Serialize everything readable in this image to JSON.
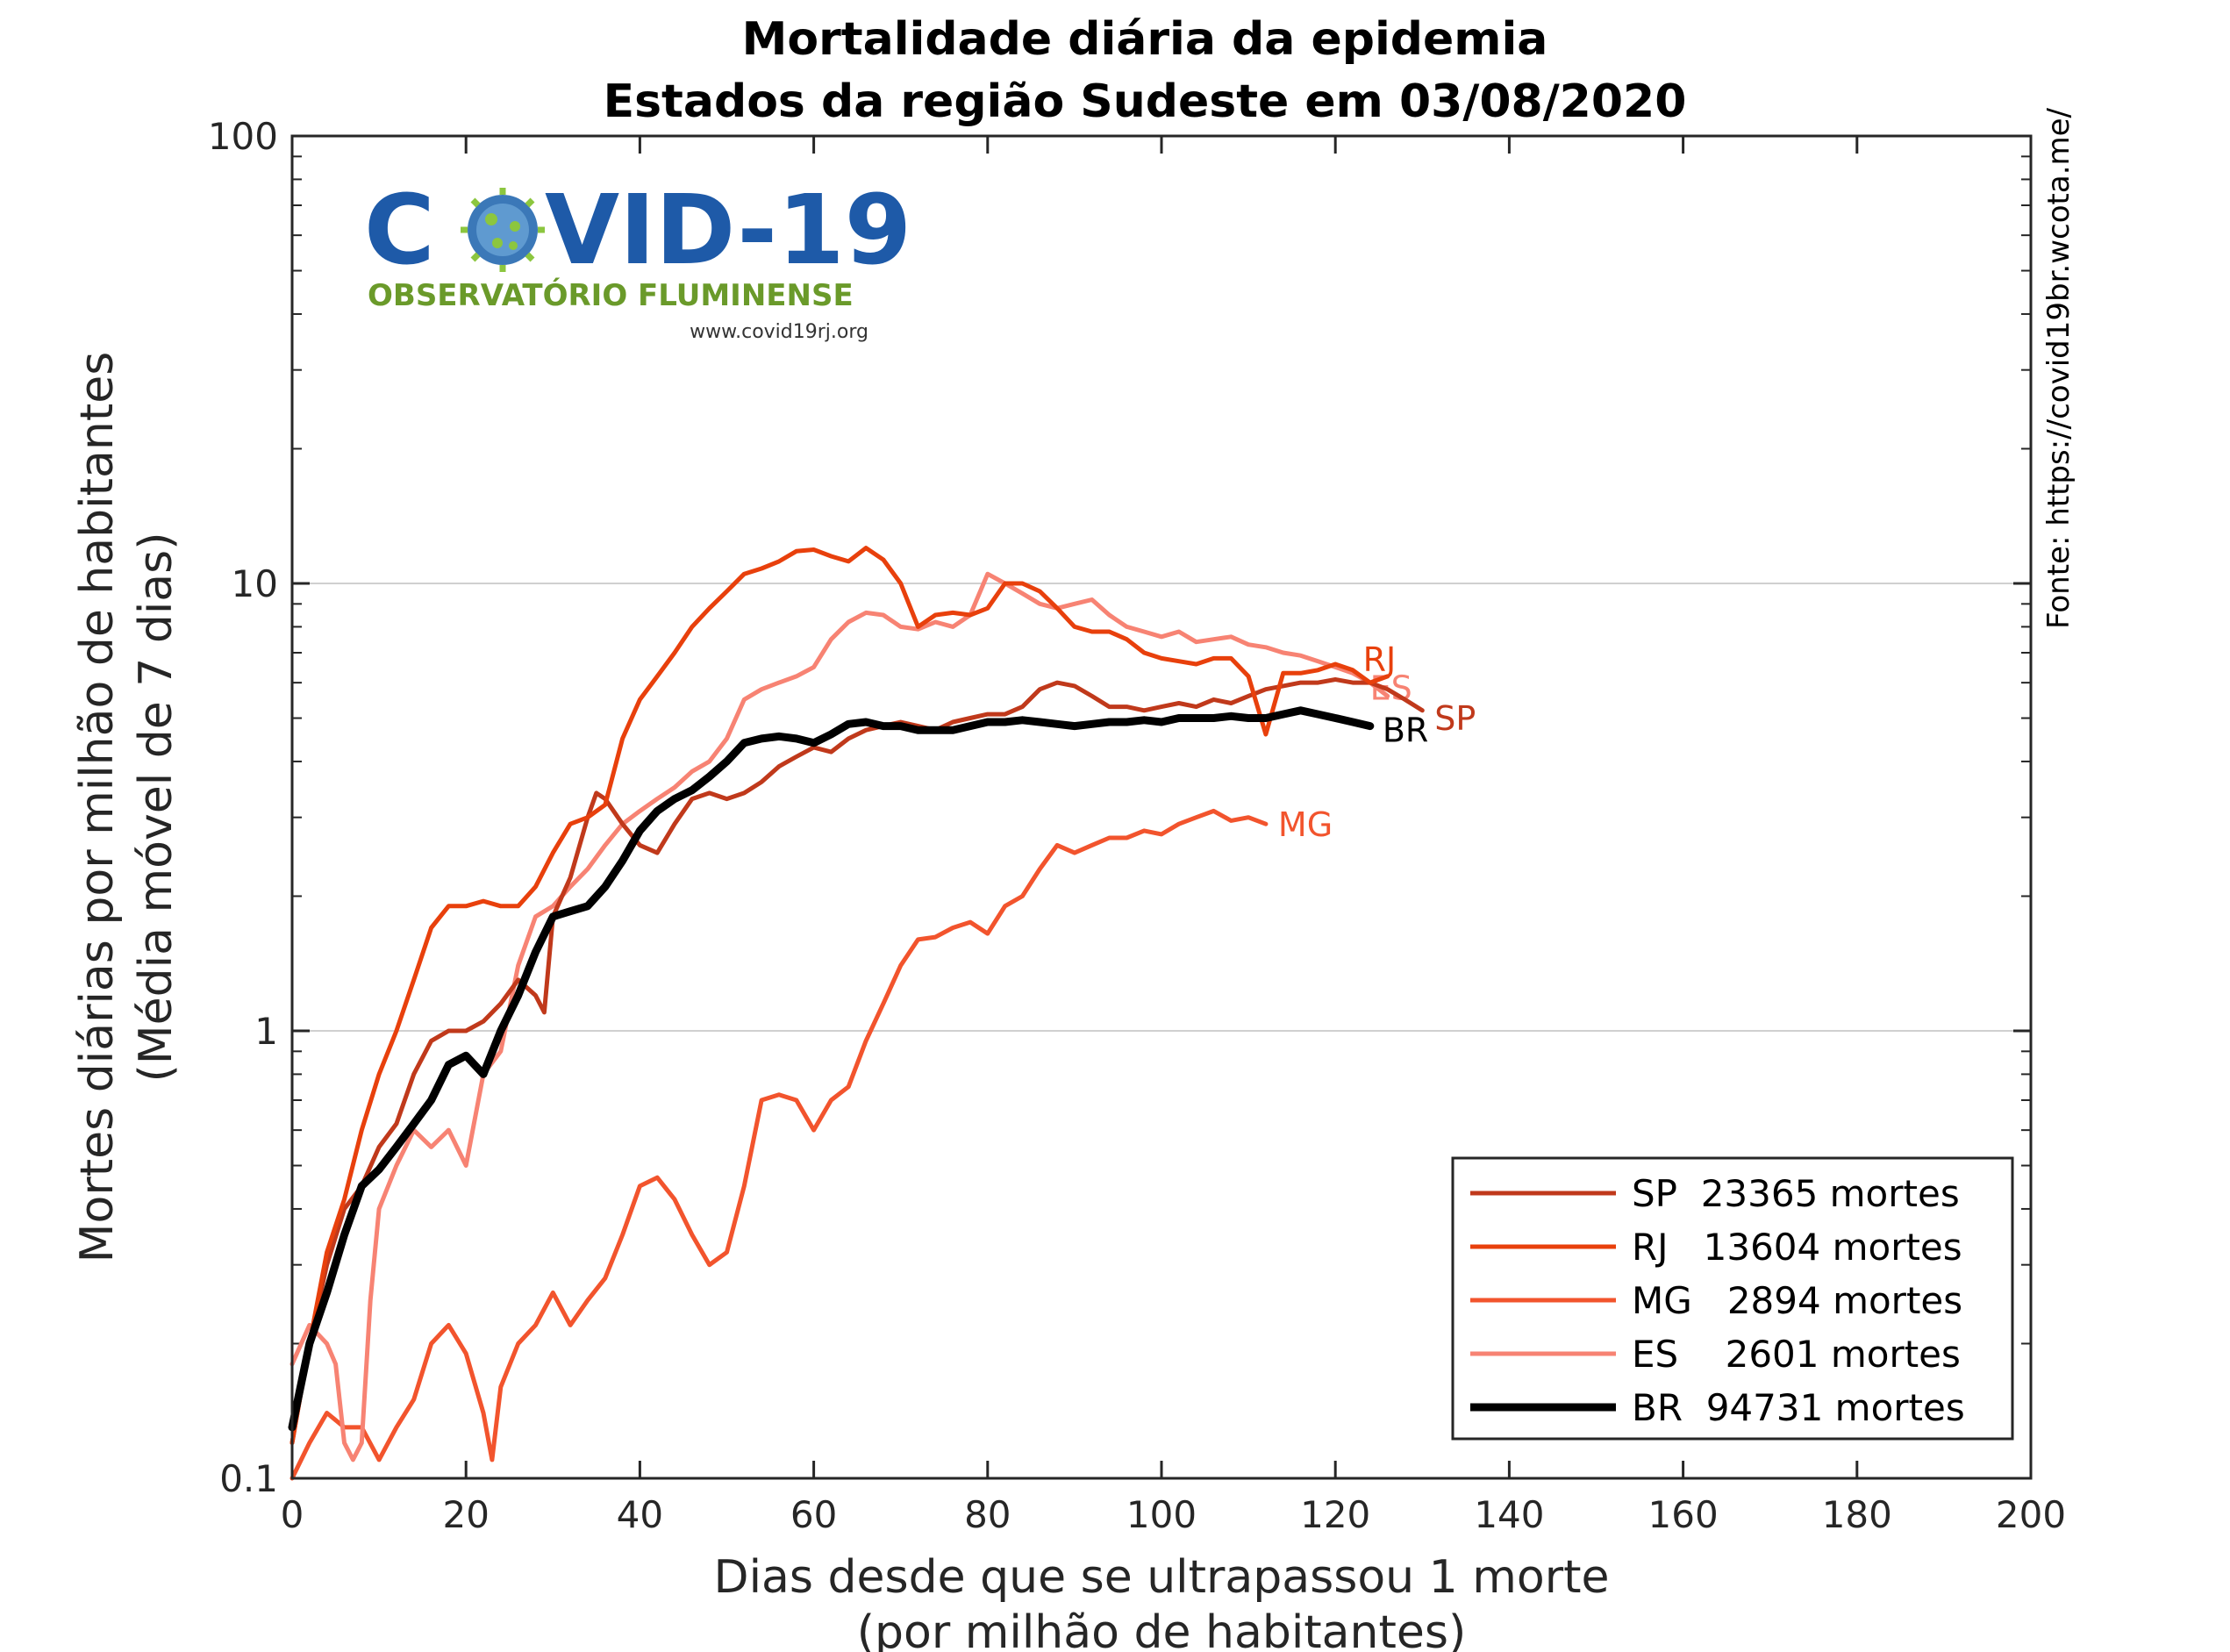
{
  "title_line1": "Mortalidade diária da epidemia",
  "title_line2": "Estados da região Sudeste em 03/08/2020",
  "source_text": "Fonte: https://covid19br.wcota.me/",
  "logo": {
    "text_left": "C",
    "text_right": "VID-19",
    "subtitle": "OBSERVATÓRIO FLUMINENSE",
    "url": "www.covid19rj.org"
  },
  "chart_data": {
    "type": "line",
    "xlabel_line1": "Dias desde que se ultrapassou 1 morte",
    "xlabel_line2": "(por milhão de habitantes)",
    "ylabel_line1": "Mortes diárias por milhão de habitantes",
    "ylabel_line2": "(Média móvel de 7 dias)",
    "xlim": [
      0,
      200
    ],
    "ylim": [
      0.1,
      100
    ],
    "yscale": "log",
    "x_ticks": [
      0,
      20,
      40,
      60,
      80,
      100,
      120,
      140,
      160,
      180,
      200
    ],
    "y_ticks": [
      0.1,
      1,
      10,
      100
    ],
    "y_tick_labels": [
      "0.1",
      "1",
      "10",
      "100"
    ],
    "grid": "horizontal at decades",
    "legend_position": "bottom-right",
    "series": [
      {
        "name": "SP",
        "deaths": "23365",
        "legend_label": "SP  23365 mortes",
        "color": "#c0391b",
        "end_label": "SP",
        "x": [
          0,
          2,
          4,
          6,
          8,
          10,
          12,
          14,
          16,
          18,
          20,
          22,
          24,
          26,
          28,
          29,
          30,
          32,
          34,
          35,
          36,
          38,
          40,
          42,
          44,
          46,
          48,
          50,
          52,
          54,
          56,
          58,
          60,
          62,
          64,
          66,
          68,
          70,
          72,
          74,
          76,
          78,
          80,
          82,
          84,
          86,
          88,
          90,
          92,
          94,
          96,
          98,
          100,
          102,
          104,
          106,
          108,
          110,
          112,
          114,
          116,
          118,
          120,
          122,
          124,
          126,
          128,
          130
        ],
        "y": [
          0.12,
          0.2,
          0.3,
          0.4,
          0.45,
          0.55,
          0.62,
          0.8,
          0.95,
          1.0,
          1.0,
          1.05,
          1.15,
          1.3,
          1.2,
          1.1,
          1.8,
          2.2,
          3.0,
          3.4,
          3.3,
          2.9,
          2.6,
          2.5,
          2.9,
          3.3,
          3.4,
          3.3,
          3.4,
          3.6,
          3.9,
          4.1,
          4.3,
          4.2,
          4.5,
          4.7,
          4.8,
          4.9,
          4.8,
          4.7,
          4.9,
          5.0,
          5.1,
          5.1,
          5.3,
          5.8,
          6.0,
          5.9,
          5.6,
          5.3,
          5.3,
          5.2,
          5.3,
          5.4,
          5.3,
          5.5,
          5.4,
          5.6,
          5.8,
          5.9,
          6.0,
          6.0,
          6.1,
          6.0,
          6.0,
          5.8,
          5.5,
          5.2
        ]
      },
      {
        "name": "RJ",
        "deaths": "13604",
        "legend_label": "RJ   13604 mortes",
        "color": "#e8400c",
        "end_label": "RJ",
        "x": [
          0,
          2,
          4,
          6,
          8,
          10,
          12,
          14,
          16,
          18,
          20,
          22,
          24,
          26,
          28,
          30,
          32,
          34,
          36,
          38,
          40,
          42,
          44,
          46,
          48,
          50,
          52,
          54,
          56,
          58,
          60,
          62,
          64,
          66,
          68,
          70,
          72,
          74,
          76,
          78,
          80,
          82,
          84,
          86,
          88,
          90,
          92,
          94,
          96,
          98,
          100,
          102,
          104,
          106,
          108,
          110,
          112,
          114,
          116,
          118,
          120,
          122,
          124,
          126
        ],
        "y": [
          0.12,
          0.2,
          0.32,
          0.42,
          0.6,
          0.8,
          1.0,
          1.3,
          1.7,
          1.9,
          1.9,
          1.95,
          1.9,
          1.9,
          2.1,
          2.5,
          2.9,
          3.0,
          3.2,
          4.5,
          5.5,
          6.2,
          7.0,
          8.0,
          8.8,
          9.6,
          10.5,
          10.8,
          11.2,
          11.8,
          11.9,
          11.5,
          11.2,
          12.0,
          11.3,
          10.0,
          8.0,
          8.5,
          8.6,
          8.5,
          8.8,
          10.0,
          10.0,
          9.6,
          8.8,
          8.0,
          7.8,
          7.8,
          7.5,
          7.0,
          6.8,
          6.7,
          6.6,
          6.8,
          6.8,
          6.2,
          4.6,
          6.3,
          6.3,
          6.4,
          6.6,
          6.4,
          6.0,
          6.2
        ]
      },
      {
        "name": "MG",
        "deaths": "2894",
        "legend_label": "MG   2894 mortes",
        "color": "#f2542d",
        "end_label": "MG",
        "x": [
          0,
          2,
          4,
          6,
          8,
          10,
          12,
          14,
          16,
          18,
          20,
          22,
          23,
          24,
          26,
          28,
          30,
          32,
          34,
          36,
          38,
          40,
          42,
          44,
          46,
          48,
          50,
          52,
          54,
          56,
          58,
          60,
          62,
          64,
          66,
          68,
          70,
          72,
          74,
          76,
          78,
          80,
          82,
          84,
          86,
          88,
          90,
          92,
          94,
          96,
          98,
          100,
          102,
          104,
          106,
          108,
          110,
          112
        ],
        "y": [
          0.1,
          0.12,
          0.14,
          0.13,
          0.13,
          0.11,
          0.13,
          0.15,
          0.2,
          0.22,
          0.19,
          0.14,
          0.11,
          0.16,
          0.2,
          0.22,
          0.26,
          0.22,
          0.25,
          0.28,
          0.35,
          0.45,
          0.47,
          0.42,
          0.35,
          0.3,
          0.32,
          0.45,
          0.7,
          0.72,
          0.7,
          0.6,
          0.7,
          0.75,
          0.95,
          1.15,
          1.4,
          1.6,
          1.62,
          1.7,
          1.75,
          1.65,
          1.9,
          2.0,
          2.3,
          2.6,
          2.5,
          2.6,
          2.7,
          2.7,
          2.8,
          2.75,
          2.9,
          3.0,
          3.1,
          2.95,
          3.0,
          2.9
        ]
      },
      {
        "name": "ES",
        "deaths": "2601",
        "legend_label": "ES    2601 mortes",
        "color": "#f78373",
        "end_label": "ES",
        "x": [
          0,
          2,
          4,
          5,
          6,
          7,
          8,
          9,
          10,
          12,
          14,
          16,
          18,
          20,
          22,
          24,
          26,
          28,
          30,
          32,
          34,
          36,
          38,
          40,
          42,
          44,
          46,
          48,
          50,
          52,
          54,
          56,
          58,
          60,
          62,
          64,
          66,
          68,
          70,
          72,
          74,
          76,
          78,
          80,
          82,
          84,
          86,
          88,
          90,
          92,
          94,
          96,
          98,
          100,
          102,
          104,
          106,
          108,
          110,
          112,
          114,
          116,
          118,
          120,
          122,
          124,
          126
        ],
        "y": [
          0.18,
          0.22,
          0.2,
          0.18,
          0.12,
          0.11,
          0.12,
          0.25,
          0.4,
          0.5,
          0.6,
          0.55,
          0.6,
          0.5,
          0.8,
          0.9,
          1.4,
          1.8,
          1.9,
          2.1,
          2.3,
          2.6,
          2.9,
          3.1,
          3.3,
          3.5,
          3.8,
          4.0,
          4.5,
          5.5,
          5.8,
          6.0,
          6.2,
          6.5,
          7.5,
          8.2,
          8.6,
          8.5,
          8.0,
          7.9,
          8.2,
          8.0,
          8.5,
          10.5,
          10.0,
          9.5,
          9.0,
          8.8,
          9.0,
          9.2,
          8.5,
          8.0,
          7.8,
          7.6,
          7.8,
          7.4,
          7.5,
          7.6,
          7.3,
          7.2,
          7.0,
          6.9,
          6.7,
          6.5,
          6.3,
          6.0,
          5.6
        ]
      },
      {
        "name": "BR",
        "deaths": "94731",
        "legend_label": "BR  94731 mortes",
        "color": "#000000",
        "end_label": "BR",
        "x": [
          0,
          2,
          4,
          6,
          8,
          10,
          12,
          14,
          16,
          18,
          20,
          22,
          24,
          26,
          28,
          30,
          32,
          34,
          36,
          38,
          40,
          42,
          44,
          46,
          48,
          50,
          52,
          54,
          56,
          58,
          60,
          62,
          64,
          66,
          68,
          70,
          72,
          74,
          76,
          78,
          80,
          82,
          84,
          86,
          88,
          90,
          92,
          94,
          96,
          98,
          100,
          102,
          104,
          106,
          108,
          110,
          112,
          114,
          116,
          118,
          120,
          122,
          124
        ],
        "y": [
          0.13,
          0.2,
          0.26,
          0.35,
          0.45,
          0.49,
          0.55,
          0.62,
          0.7,
          0.84,
          0.88,
          0.8,
          1.0,
          1.2,
          1.5,
          1.8,
          1.85,
          1.9,
          2.1,
          2.4,
          2.8,
          3.1,
          3.3,
          3.45,
          3.7,
          4.0,
          4.4,
          4.5,
          4.55,
          4.5,
          4.4,
          4.6,
          4.85,
          4.9,
          4.8,
          4.8,
          4.7,
          4.7,
          4.7,
          4.8,
          4.9,
          4.9,
          4.95,
          4.9,
          4.85,
          4.8,
          4.85,
          4.9,
          4.9,
          4.95,
          4.9,
          5.0,
          5.0,
          5.0,
          5.05,
          5.0,
          5.0,
          5.1,
          5.2,
          5.1,
          5.0,
          4.9,
          4.8
        ]
      }
    ]
  }
}
